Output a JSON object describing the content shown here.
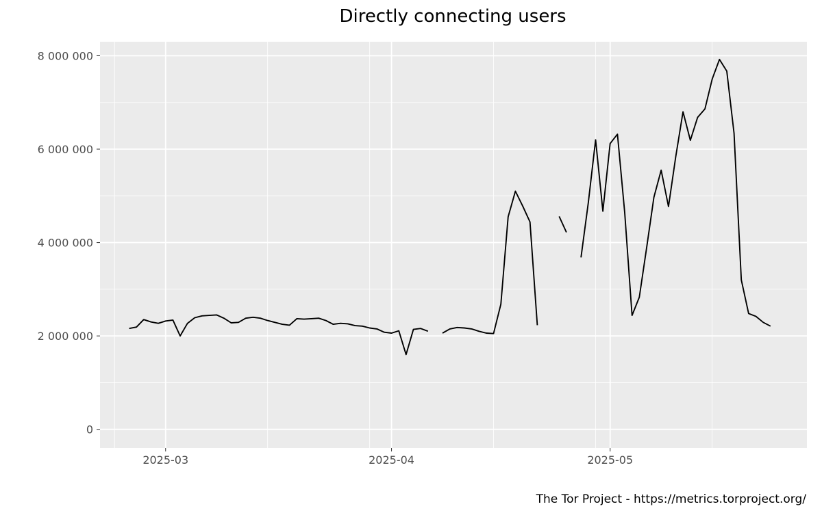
{
  "chart_data": {
    "type": "line",
    "title": "Directly connecting users",
    "caption": "The Tor Project - https://metrics.torproject.org/",
    "xlabel": "",
    "ylabel": "",
    "x_range": [
      "2025-02-20",
      "2025-05-28"
    ],
    "ylim": [
      -400000,
      8300000
    ],
    "grid": true,
    "legend": "none",
    "colors": {
      "panel": "#ebebeb",
      "grid": "#ffffff",
      "line": "#000000",
      "tick_label": "#4d4d4d"
    },
    "y_ticks": [
      {
        "value": 0,
        "label": "0"
      },
      {
        "value": 2000000,
        "label": "2 000 000"
      },
      {
        "value": 4000000,
        "label": "4 000 000"
      },
      {
        "value": 6000000,
        "label": "6 000 000"
      },
      {
        "value": 8000000,
        "label": "8 000 000"
      }
    ],
    "x_ticks": [
      {
        "date": "2025-03-01",
        "label": "2025-03"
      },
      {
        "date": "2025-04-01",
        "label": "2025-04"
      },
      {
        "date": "2025-05-01",
        "label": "2025-05"
      }
    ],
    "x_minor_grid": [
      "2025-02-22",
      "2025-03-15",
      "2025-03-29",
      "2025-04-15",
      "2025-04-29",
      "2025-05-15",
      "2025-05-29"
    ],
    "series": [
      {
        "points": [
          [
            "2025-02-24",
            2160000
          ],
          [
            "2025-02-25",
            2190000
          ],
          [
            "2025-02-26",
            2350000
          ],
          [
            "2025-02-27",
            2300000
          ],
          [
            "2025-02-28",
            2270000
          ],
          [
            "2025-03-01",
            2320000
          ],
          [
            "2025-03-02",
            2340000
          ],
          [
            "2025-03-03",
            2000000
          ],
          [
            "2025-03-04",
            2270000
          ],
          [
            "2025-03-05",
            2390000
          ],
          [
            "2025-03-06",
            2430000
          ],
          [
            "2025-03-07",
            2440000
          ],
          [
            "2025-03-08",
            2450000
          ],
          [
            "2025-03-09",
            2380000
          ],
          [
            "2025-03-10",
            2280000
          ],
          [
            "2025-03-11",
            2290000
          ],
          [
            "2025-03-12",
            2380000
          ],
          [
            "2025-03-13",
            2400000
          ],
          [
            "2025-03-14",
            2380000
          ],
          [
            "2025-03-15",
            2330000
          ],
          [
            "2025-03-16",
            2290000
          ],
          [
            "2025-03-17",
            2250000
          ],
          [
            "2025-03-18",
            2230000
          ],
          [
            "2025-03-19",
            2370000
          ],
          [
            "2025-03-20",
            2360000
          ],
          [
            "2025-03-21",
            2370000
          ],
          [
            "2025-03-22",
            2380000
          ],
          [
            "2025-03-23",
            2330000
          ],
          [
            "2025-03-24",
            2250000
          ],
          [
            "2025-03-25",
            2270000
          ],
          [
            "2025-03-26",
            2260000
          ],
          [
            "2025-03-27",
            2220000
          ],
          [
            "2025-03-28",
            2210000
          ],
          [
            "2025-03-29",
            2170000
          ],
          [
            "2025-03-30",
            2150000
          ],
          [
            "2025-03-31",
            2080000
          ],
          [
            "2025-04-01",
            2060000
          ],
          [
            "2025-04-02",
            2110000
          ],
          [
            "2025-04-03",
            1600000
          ],
          [
            "2025-04-04",
            2140000
          ],
          [
            "2025-04-05",
            2160000
          ],
          [
            "2025-04-06",
            2100000
          ],
          [
            "2025-04-07",
            null
          ],
          [
            "2025-04-08",
            2060000
          ],
          [
            "2025-04-09",
            2150000
          ],
          [
            "2025-04-10",
            2180000
          ],
          [
            "2025-04-11",
            2170000
          ],
          [
            "2025-04-12",
            2150000
          ],
          [
            "2025-04-13",
            2100000
          ],
          [
            "2025-04-14",
            2060000
          ],
          [
            "2025-04-15",
            2050000
          ],
          [
            "2025-04-16",
            2680000
          ],
          [
            "2025-04-17",
            4550000
          ],
          [
            "2025-04-18",
            5100000
          ],
          [
            "2025-04-19",
            4780000
          ],
          [
            "2025-04-20",
            4440000
          ],
          [
            "2025-04-21",
            2230000
          ],
          [
            "2025-04-22",
            null
          ],
          [
            "2025-04-23",
            null
          ],
          [
            "2025-04-24",
            4560000
          ],
          [
            "2025-04-25",
            4220000
          ],
          [
            "2025-04-26",
            null
          ],
          [
            "2025-04-27",
            3680000
          ],
          [
            "2025-04-28",
            4850000
          ],
          [
            "2025-04-29",
            6200000
          ],
          [
            "2025-04-30",
            4670000
          ],
          [
            "2025-05-01",
            6120000
          ],
          [
            "2025-05-02",
            6320000
          ],
          [
            "2025-05-03",
            4640000
          ],
          [
            "2025-05-04",
            2440000
          ],
          [
            "2025-05-05",
            2830000
          ],
          [
            "2025-05-06",
            3880000
          ],
          [
            "2025-05-07",
            4970000
          ],
          [
            "2025-05-08",
            5550000
          ],
          [
            "2025-05-09",
            4770000
          ],
          [
            "2025-05-10",
            5840000
          ],
          [
            "2025-05-11",
            6800000
          ],
          [
            "2025-05-12",
            6190000
          ],
          [
            "2025-05-13",
            6680000
          ],
          [
            "2025-05-14",
            6860000
          ],
          [
            "2025-05-15",
            7500000
          ],
          [
            "2025-05-16",
            7920000
          ],
          [
            "2025-05-17",
            7670000
          ],
          [
            "2025-05-18",
            6340000
          ],
          [
            "2025-05-19",
            3200000
          ],
          [
            "2025-05-20",
            2480000
          ],
          [
            "2025-05-21",
            2420000
          ],
          [
            "2025-05-22",
            2290000
          ],
          [
            "2025-05-23",
            2210000
          ]
        ]
      }
    ]
  }
}
